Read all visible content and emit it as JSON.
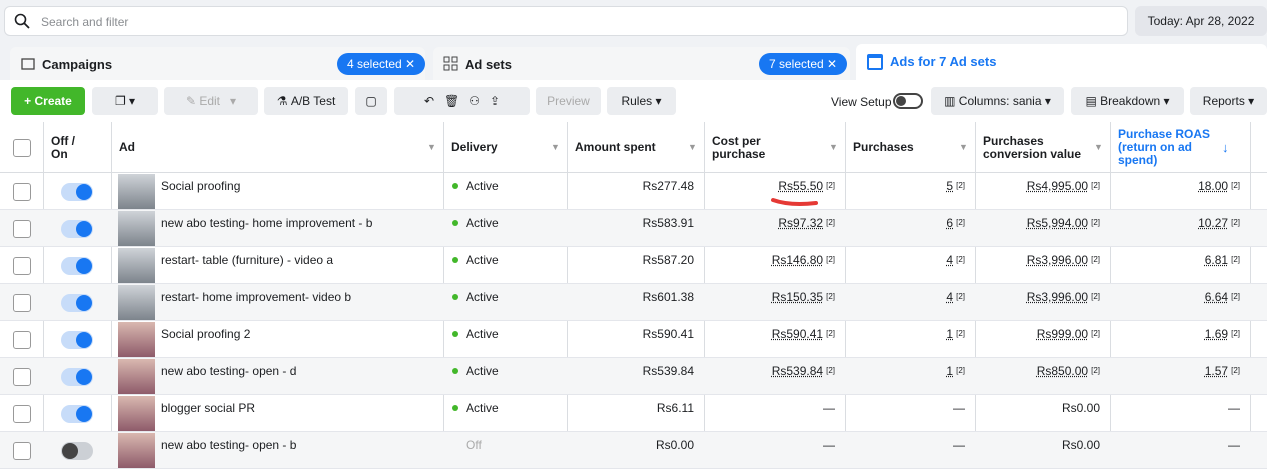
{
  "search": {
    "placeholder": "Search and filter",
    "date": "Today: Apr 28, 2022"
  },
  "tabs": {
    "campaigns": {
      "label": "Campaigns",
      "selected": "4 selected"
    },
    "adsets": {
      "label": "Ad sets",
      "selected": "7 selected"
    },
    "ads": {
      "label": "Ads for 7 Ad sets"
    }
  },
  "toolbar": {
    "create": "Create",
    "edit": "Edit",
    "ab_test": "A/B Test",
    "preview": "Preview",
    "rules": "Rules",
    "view_setup": "View Setup",
    "columns": "Columns: sania",
    "breakdown": "Breakdown",
    "reports": "Reports"
  },
  "table": {
    "columns": [
      "Off / On",
      "Ad",
      "Delivery",
      "Amount spent",
      "Cost per purchase",
      "Purchases",
      "Purchases conversion value",
      "Purchase ROAS (return on ad spend)"
    ],
    "footnote": "[2]",
    "rows": [
      [
        "Social proofing",
        "Active",
        "Rs277.48",
        "Rs55.50",
        "5",
        "Rs4,995.00",
        "18.00"
      ],
      [
        "new abo testing- home improvement - b",
        "Active",
        "Rs583.91",
        "Rs97.32",
        "6",
        "Rs5,994.00",
        "10.27"
      ],
      [
        "restart- table (furniture) - video a",
        "Active",
        "Rs587.20",
        "Rs146.80",
        "4",
        "Rs3,996.00",
        "6.81"
      ],
      [
        "restart- home improvement- video b",
        "Active",
        "Rs601.38",
        "Rs150.35",
        "4",
        "Rs3,996.00",
        "6.64"
      ],
      [
        "Social proofing 2",
        "Active",
        "Rs590.41",
        "Rs590.41",
        "1",
        "Rs999.00",
        "1.69"
      ],
      [
        "new abo testing- open - d",
        "Active",
        "Rs539.84",
        "Rs539.84",
        "1",
        "Rs850.00",
        "1.57"
      ],
      [
        "blogger social PR",
        "Active",
        "Rs6.11",
        "—",
        "—",
        "Rs0.00",
        "—"
      ],
      [
        "new abo testing- open - b",
        "Off",
        "Rs0.00",
        "—",
        "—",
        "Rs0.00",
        "—"
      ]
    ]
  }
}
